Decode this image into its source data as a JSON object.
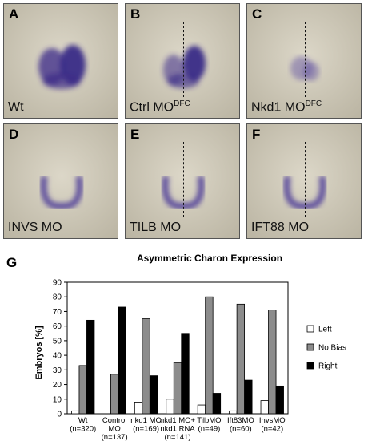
{
  "panels": [
    {
      "letter": "A",
      "label": "Wt",
      "sup": "",
      "shape": "full",
      "color": "#3a2a88"
    },
    {
      "letter": "B",
      "label": "Ctrl MO",
      "sup": "DFC",
      "shape": "right",
      "color": "#3a2a88"
    },
    {
      "letter": "C",
      "label": "Nkd1 MO",
      "sup": "DFC",
      "shape": "faint",
      "color": "#5b4aa0"
    },
    {
      "letter": "D",
      "label": "INVS MO",
      "sup": "",
      "shape": "ring",
      "color": "#4a3a98"
    },
    {
      "letter": "E",
      "label": "TILB MO",
      "sup": "",
      "shape": "ring",
      "color": "#4a3a98"
    },
    {
      "letter": "F",
      "label": "IFT88 MO",
      "sup": "",
      "shape": "ring",
      "color": "#4a3a98"
    }
  ],
  "figure_letter": "G",
  "chart_data": {
    "type": "bar",
    "title": "Asymmetric Charon Expression",
    "ylabel": "Embryos [%]",
    "ylim": [
      0,
      90
    ],
    "yticks": [
      0,
      10,
      20,
      30,
      40,
      50,
      60,
      70,
      80,
      90
    ],
    "categories": [
      [
        "Wt",
        "(n=320)"
      ],
      [
        "Control",
        "MO",
        "(n=137)"
      ],
      [
        "nkd1 MO",
        "(n=169)"
      ],
      [
        "nkd1 MO+",
        "nkd1 RNA",
        "(n=141)"
      ],
      [
        "TilbMO",
        "(n=49)"
      ],
      [
        "Ift83MO",
        "(n=60)"
      ],
      [
        "InvsMO",
        "(n=42)"
      ]
    ],
    "series": [
      {
        "name": "Left",
        "color": "#ffffff",
        "values": [
          2,
          0,
          8,
          10,
          6,
          2,
          9
        ]
      },
      {
        "name": "No Bias",
        "color": "#8c8c8c",
        "values": [
          33,
          27,
          65,
          35,
          80,
          75,
          71
        ]
      },
      {
        "name": "Right",
        "color": "#000000",
        "values": [
          64,
          73,
          26,
          55,
          14,
          23,
          19
        ]
      }
    ],
    "legend_position": "right"
  }
}
